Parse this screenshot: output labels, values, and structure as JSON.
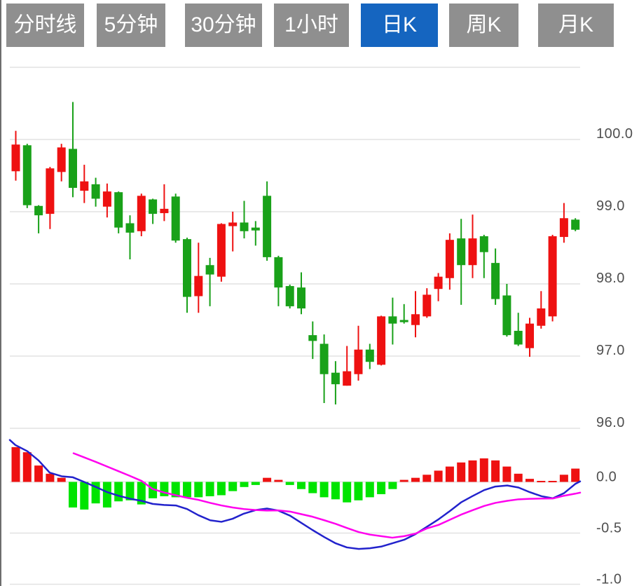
{
  "tabs": {
    "items": [
      {
        "label": "分时线",
        "active": false
      },
      {
        "label": "5分钟",
        "active": false
      },
      {
        "label": "30分钟",
        "active": false
      },
      {
        "label": "1小时",
        "active": false
      },
      {
        "label": "日K",
        "active": true
      },
      {
        "label": "周K",
        "active": false
      },
      {
        "label": "月K",
        "active": false
      }
    ]
  },
  "colors": {
    "tab_bg": "#8f8f8f",
    "tab_active_bg": "#1565c0",
    "tab_text": "#ffffff",
    "up_candle": "#ee1111",
    "down_candle": "#19a119",
    "macd_pos_bar": "#ee1111",
    "macd_neg_bar": "#00e400",
    "dif_line": "#2222cc",
    "dea_line": "#ff00ee",
    "gridline": "#e2e2e2",
    "axis_text": "#4f4f4f",
    "window_edge": "#6e6e6e"
  },
  "chart_data": {
    "type": "candlestick_with_macd",
    "legend": "none",
    "grid": true,
    "panel_price": {
      "yticks": [
        100.0,
        99.0,
        98.0,
        97.0,
        96.0
      ],
      "ytick_labels": [
        "100.0",
        "99.0",
        "98.0",
        "97.0",
        "96.0"
      ],
      "unlabeled_gridlines": [
        101.0
      ],
      "ylim": [
        95.85,
        101.05
      ],
      "candles_ohlc": [
        [
          99.56,
          100.12,
          99.43,
          99.93
        ],
        [
          99.92,
          99.94,
          99.05,
          99.09
        ],
        [
          99.08,
          99.09,
          98.7,
          98.95
        ],
        [
          98.97,
          99.62,
          98.76,
          99.6
        ],
        [
          99.55,
          99.94,
          99.42,
          99.89
        ],
        [
          99.87,
          100.52,
          99.2,
          99.33
        ],
        [
          99.29,
          99.65,
          99.12,
          99.42
        ],
        [
          99.38,
          99.47,
          99.07,
          99.18
        ],
        [
          99.07,
          99.39,
          98.92,
          99.28
        ],
        [
          99.27,
          99.28,
          98.7,
          98.78
        ],
        [
          98.84,
          98.95,
          98.34,
          98.71
        ],
        [
          98.73,
          99.25,
          98.66,
          99.22
        ],
        [
          99.17,
          99.18,
          98.83,
          98.97
        ],
        [
          98.98,
          99.38,
          98.87,
          99.04
        ],
        [
          99.21,
          99.25,
          98.57,
          98.6
        ],
        [
          98.62,
          98.64,
          97.6,
          97.82
        ],
        [
          97.83,
          98.57,
          97.6,
          98.11
        ],
        [
          98.26,
          98.36,
          97.69,
          98.13
        ],
        [
          98.1,
          98.84,
          98.03,
          98.83
        ],
        [
          98.8,
          99.0,
          98.45,
          98.85
        ],
        [
          98.85,
          99.15,
          98.63,
          98.73
        ],
        [
          98.78,
          98.87,
          98.53,
          98.74
        ],
        [
          99.22,
          99.42,
          98.32,
          98.37
        ],
        [
          98.37,
          98.39,
          97.69,
          97.95
        ],
        [
          97.97,
          97.99,
          97.66,
          97.69
        ],
        [
          97.95,
          98.16,
          97.58,
          97.66
        ],
        [
          97.29,
          97.48,
          96.96,
          97.21
        ],
        [
          97.17,
          97.3,
          96.35,
          96.75
        ],
        [
          96.77,
          96.93,
          96.33,
          96.61
        ],
        [
          96.59,
          97.14,
          96.59,
          96.79
        ],
        [
          96.75,
          97.42,
          96.66,
          97.09
        ],
        [
          97.09,
          97.17,
          96.82,
          96.92
        ],
        [
          96.88,
          97.56,
          96.87,
          97.55
        ],
        [
          97.55,
          97.81,
          97.16,
          97.45
        ],
        [
          97.5,
          97.72,
          97.45,
          97.47
        ],
        [
          97.43,
          97.9,
          97.26,
          97.58
        ],
        [
          97.55,
          97.94,
          97.53,
          97.85
        ],
        [
          97.93,
          98.15,
          97.76,
          98.1
        ],
        [
          98.08,
          98.7,
          97.92,
          98.61
        ],
        [
          98.63,
          98.9,
          97.71,
          98.26
        ],
        [
          98.26,
          98.96,
          98.08,
          98.63
        ],
        [
          98.66,
          98.68,
          98.08,
          98.44
        ],
        [
          98.29,
          98.49,
          97.71,
          97.79
        ],
        [
          97.84,
          98.0,
          97.27,
          97.29
        ],
        [
          97.35,
          97.6,
          97.14,
          97.16
        ],
        [
          97.11,
          97.53,
          96.99,
          97.45
        ],
        [
          97.42,
          97.9,
          97.38,
          97.66
        ],
        [
          97.55,
          98.68,
          97.48,
          98.66
        ],
        [
          98.65,
          99.12,
          98.57,
          98.91
        ],
        [
          98.89,
          98.91,
          98.73,
          98.75
        ]
      ]
    },
    "panel_macd": {
      "yticks": [
        0.0,
        -0.5,
        -1.0
      ],
      "ytick_labels": [
        "0.0",
        "-0.5",
        "-1.0"
      ],
      "ylim": [
        -1.02,
        0.55
      ],
      "histogram": [
        0.34,
        0.29,
        0.16,
        0.08,
        0.04,
        -0.25,
        -0.27,
        -0.21,
        -0.25,
        -0.19,
        -0.18,
        -0.22,
        -0.16,
        -0.14,
        -0.15,
        -0.15,
        -0.15,
        -0.14,
        -0.13,
        -0.09,
        -0.05,
        -0.03,
        0.04,
        0.02,
        -0.03,
        -0.07,
        -0.11,
        -0.15,
        -0.17,
        -0.2,
        -0.18,
        -0.15,
        -0.12,
        -0.07,
        0.02,
        0.04,
        0.07,
        0.11,
        0.15,
        0.19,
        0.21,
        0.23,
        0.21,
        0.15,
        0.08,
        0.03,
        0.01,
        0.01,
        0.07,
        0.13
      ],
      "dif_points": [
        [
          12,
          0.41
        ],
        [
          20,
          0.36
        ],
        [
          37,
          0.3
        ],
        [
          53,
          0.21
        ],
        [
          69,
          0.09
        ],
        [
          86,
          0.055
        ],
        [
          102,
          0.045
        ],
        [
          118,
          0.0
        ],
        [
          135,
          -0.05
        ],
        [
          151,
          -0.1
        ],
        [
          167,
          -0.135
        ],
        [
          184,
          -0.165
        ],
        [
          200,
          -0.185
        ],
        [
          216,
          -0.215
        ],
        [
          232,
          -0.225
        ],
        [
          249,
          -0.23
        ],
        [
          265,
          -0.265
        ],
        [
          281,
          -0.325
        ],
        [
          298,
          -0.375
        ],
        [
          314,
          -0.39
        ],
        [
          330,
          -0.36
        ],
        [
          346,
          -0.31
        ],
        [
          363,
          -0.275
        ],
        [
          379,
          -0.26
        ],
        [
          395,
          -0.28
        ],
        [
          412,
          -0.33
        ],
        [
          428,
          -0.4
        ],
        [
          444,
          -0.47
        ],
        [
          461,
          -0.54
        ],
        [
          477,
          -0.6
        ],
        [
          493,
          -0.64
        ],
        [
          510,
          -0.655
        ],
        [
          526,
          -0.648
        ],
        [
          542,
          -0.632
        ],
        [
          558,
          -0.6
        ],
        [
          575,
          -0.565
        ],
        [
          591,
          -0.51
        ],
        [
          607,
          -0.44
        ],
        [
          624,
          -0.365
        ],
        [
          640,
          -0.285
        ],
        [
          656,
          -0.2
        ],
        [
          672,
          -0.14
        ],
        [
          689,
          -0.08
        ],
        [
          705,
          -0.045
        ],
        [
          722,
          -0.035
        ],
        [
          738,
          -0.055
        ],
        [
          754,
          -0.1
        ],
        [
          771,
          -0.14
        ],
        [
          787,
          -0.16
        ],
        [
          803,
          -0.11
        ],
        [
          819,
          -0.02
        ],
        [
          826,
          0.005
        ]
      ],
      "dea_points": [
        [
          103,
          0.28
        ],
        [
          118,
          0.24
        ],
        [
          135,
          0.195
        ],
        [
          151,
          0.15
        ],
        [
          167,
          0.105
        ],
        [
          183,
          0.06
        ],
        [
          200,
          0.01
        ],
        [
          216,
          -0.07
        ],
        [
          233,
          -0.105
        ],
        [
          249,
          -0.13
        ],
        [
          265,
          -0.155
        ],
        [
          281,
          -0.175
        ],
        [
          298,
          -0.205
        ],
        [
          314,
          -0.23
        ],
        [
          330,
          -0.25
        ],
        [
          346,
          -0.265
        ],
        [
          363,
          -0.275
        ],
        [
          379,
          -0.28
        ],
        [
          395,
          -0.278
        ],
        [
          412,
          -0.29
        ],
        [
          428,
          -0.315
        ],
        [
          444,
          -0.34
        ],
        [
          461,
          -0.375
        ],
        [
          477,
          -0.41
        ],
        [
          493,
          -0.45
        ],
        [
          510,
          -0.49
        ],
        [
          526,
          -0.515
        ],
        [
          542,
          -0.53
        ],
        [
          558,
          -0.545
        ],
        [
          575,
          -0.53
        ],
        [
          591,
          -0.505
        ],
        [
          607,
          -0.455
        ],
        [
          624,
          -0.42
        ],
        [
          640,
          -0.37
        ],
        [
          656,
          -0.32
        ],
        [
          673,
          -0.275
        ],
        [
          689,
          -0.235
        ],
        [
          705,
          -0.205
        ],
        [
          722,
          -0.185
        ],
        [
          738,
          -0.17
        ],
        [
          754,
          -0.165
        ],
        [
          771,
          -0.163
        ],
        [
          787,
          -0.162
        ],
        [
          803,
          -0.135
        ],
        [
          819,
          -0.115
        ],
        [
          826,
          -0.105
        ]
      ]
    }
  }
}
